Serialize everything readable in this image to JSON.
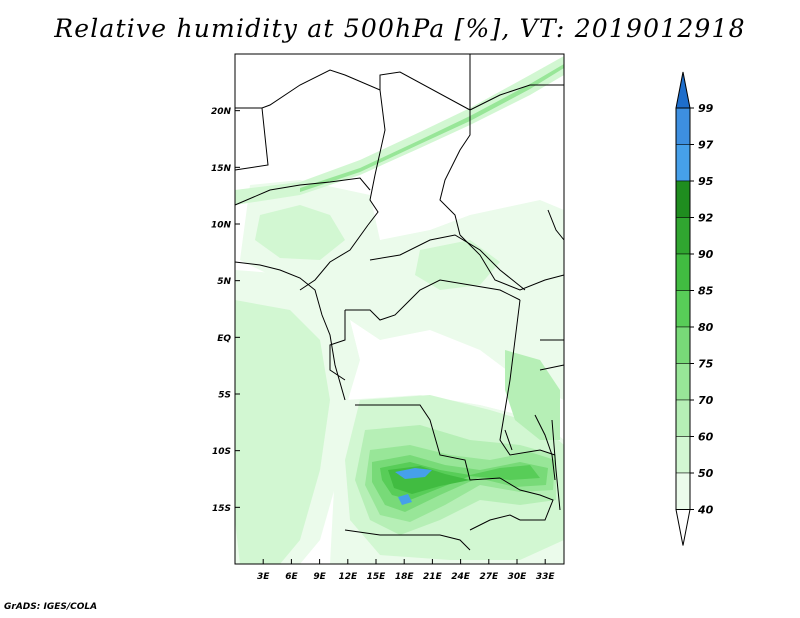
{
  "title": "Relative humidity at 500hPa [%], VT: 2019012918",
  "credit": "GrADS: IGES/COLA",
  "map": {
    "lat_labels": [
      "20N",
      "15N",
      "10N",
      "5N",
      "EQ",
      "5S",
      "10S",
      "15S"
    ],
    "lat_values": [
      20,
      15,
      10,
      5,
      0,
      -5,
      -10,
      -15
    ],
    "lon_labels": [
      "3E",
      "6E",
      "9E",
      "12E",
      "15E",
      "18E",
      "21E",
      "24E",
      "27E",
      "30E",
      "33E"
    ],
    "lon_values": [
      3,
      6,
      9,
      12,
      15,
      18,
      21,
      24,
      27,
      30,
      33
    ],
    "lon_range": [
      0,
      35
    ],
    "lat_range": [
      -20,
      25
    ]
  },
  "colorbar": {
    "labels": [
      "99",
      "97",
      "95",
      "92",
      "90",
      "85",
      "80",
      "75",
      "70",
      "60",
      "50",
      "40"
    ],
    "colors": [
      "#1e6ecb",
      "#3d8fe0",
      "#46a0ea",
      "#1f8d1f",
      "#30a630",
      "#41bc41",
      "#58cd58",
      "#78da78",
      "#98e698",
      "#b6efb6",
      "#d2f7d2",
      "#ebfbeb"
    ],
    "arrow_top_color": "#1e6ecb",
    "arrow_bottom_color": "#ffffff"
  }
}
